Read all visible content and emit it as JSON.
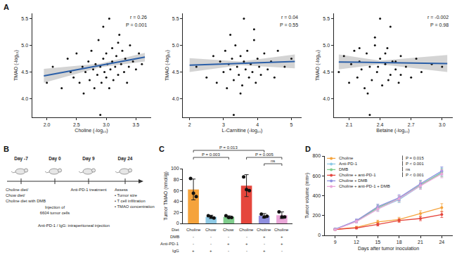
{
  "panel_labels": [
    "A",
    "B",
    "C",
    "D"
  ],
  "chart_data": [
    {
      "type": "scatter",
      "xlabel": "Choline (-log₁₀)",
      "ylabel": "TMAO (-log₁₀)",
      "annotations": [
        "r = 0.26",
        "P = 0.001"
      ],
      "xlim": [
        1.75,
        3.75
      ],
      "xticks": [
        {
          "value": 2,
          "label": "2.0"
        },
        2.5,
        {
          "value": 3,
          "label": "3.0"
        },
        3.5
      ],
      "ylim": [
        3.65,
        5.6
      ],
      "yticks": [
        {
          "value": 4,
          "label": "4.0"
        },
        4.5,
        {
          "value": 5,
          "label": "5.0"
        },
        5.5
      ],
      "grid": false,
      "color": "#111111",
      "x": [
        2.0,
        2.1,
        2.25,
        2.35,
        2.4,
        2.45,
        2.5,
        2.55,
        2.6,
        2.62,
        2.65,
        2.7,
        2.72,
        2.75,
        2.78,
        2.8,
        2.82,
        2.85,
        2.87,
        2.9,
        2.92,
        2.95,
        2.97,
        3.0,
        3.0,
        3.02,
        3.05,
        3.07,
        3.1,
        3.1,
        3.12,
        3.15,
        3.17,
        3.2,
        3.22,
        3.25,
        3.27,
        3.3,
        3.32,
        3.35,
        3.38,
        3.4,
        3.45,
        3.5,
        3.55,
        3.6,
        2.9,
        3.05,
        2.95,
        3.2
      ],
      "y": [
        4.3,
        4.6,
        4.2,
        4.75,
        4.5,
        4.4,
        4.85,
        4.3,
        4.6,
        4.1,
        4.5,
        4.7,
        4.35,
        4.9,
        4.55,
        4.2,
        4.65,
        4.45,
        5.1,
        4.6,
        4.3,
        4.75,
        4.5,
        4.85,
        4.4,
        4.65,
        4.2,
        4.55,
        4.95,
        4.7,
        4.35,
        4.6,
        4.8,
        4.45,
        5.2,
        4.65,
        4.9,
        4.5,
        4.75,
        4.3,
        4.6,
        5.0,
        4.7,
        4.55,
        4.85,
        4.65,
        3.7,
        5.5,
        5.35,
        5.05
      ],
      "fit": {
        "color": "#2b5fa8",
        "x": [
          1.95,
          2.9,
          3.65
        ],
        "y": [
          4.43,
          4.625,
          4.78
        ]
      },
      "band": {
        "x": [
          1.95,
          2.9,
          3.65
        ],
        "lower": [
          4.3,
          4.59,
          4.7
        ],
        "upper": [
          4.56,
          4.66,
          4.86
        ]
      }
    },
    {
      "type": "scatter",
      "xlabel": "L-Carnitine (-log₁₀)",
      "ylabel": "TMAO (-log₁₀)",
      "annotations": [
        "r = 0.04",
        "P = 0.55"
      ],
      "xlim": [
        1.8,
        5.3
      ],
      "xticks": [
        2,
        3,
        4,
        5
      ],
      "ylim": [
        3.65,
        5.6
      ],
      "yticks": [
        {
          "value": 4,
          "label": "4.0"
        },
        4.5,
        {
          "value": 5,
          "label": "5.0"
        },
        5.5
      ],
      "grid": false,
      "color": "#111111",
      "x": [
        2.2,
        2.5,
        2.7,
        2.8,
        2.9,
        3.0,
        3.05,
        3.1,
        3.15,
        3.2,
        3.25,
        3.3,
        3.35,
        3.4,
        3.45,
        3.5,
        3.55,
        3.6,
        3.65,
        3.7,
        3.75,
        3.8,
        3.85,
        3.9,
        3.95,
        4.0,
        4.05,
        4.1,
        4.2,
        4.3,
        4.4,
        4.5,
        4.6,
        4.8,
        5.0,
        3.3,
        3.6,
        3.9,
        3.5,
        3.2
      ],
      "y": [
        4.6,
        4.4,
        4.8,
        4.3,
        4.7,
        4.5,
        4.9,
        4.2,
        4.65,
        4.55,
        4.75,
        4.35,
        5.0,
        4.6,
        4.45,
        4.8,
        4.25,
        4.7,
        4.55,
        4.9,
        4.4,
        4.65,
        4.5,
        5.1,
        4.3,
        4.75,
        4.6,
        4.45,
        4.85,
        4.55,
        4.7,
        4.4,
        4.9,
        4.6,
        4.75,
        3.7,
        5.5,
        5.3,
        4.1,
        5.2
      ],
      "fit": {
        "color": "#2b5fa8",
        "x": [
          2.0,
          3.5,
          5.1
        ],
        "y": [
          4.63,
          4.665,
          4.7
        ]
      },
      "band": {
        "x": [
          2.0,
          3.5,
          5.1
        ],
        "lower": [
          4.5,
          4.63,
          4.57
        ],
        "upper": [
          4.76,
          4.7,
          4.83
        ]
      }
    },
    {
      "type": "scatter",
      "xlabel": "Betaine (-log₁₀)",
      "ylabel": "TMAO (-log₁₀)",
      "annotations": [
        "r = -0.002",
        "P = 0.98"
      ],
      "xlim": [
        1.95,
        3.1
      ],
      "xticks": [
        2.1,
        2.4,
        2.7,
        {
          "value": 3,
          "label": "3.0"
        }
      ],
      "ylim": [
        3.65,
        5.6
      ],
      "yticks": [
        {
          "value": 4,
          "label": "4.0"
        },
        4.5,
        {
          "value": 5,
          "label": "5.0"
        },
        5.5
      ],
      "grid": false,
      "color": "#111111",
      "x": [
        2.0,
        2.05,
        2.1,
        2.12,
        2.15,
        2.18,
        2.2,
        2.22,
        2.25,
        2.27,
        2.3,
        2.32,
        2.35,
        2.37,
        2.4,
        2.42,
        2.45,
        2.47,
        2.5,
        2.52,
        2.55,
        2.58,
        2.6,
        2.65,
        2.7,
        2.75,
        2.8,
        2.9,
        3.0,
        2.3,
        2.4,
        2.5,
        2.35,
        2.28,
        2.45,
        2.6,
        2.2,
        2.38,
        2.48,
        2.55
      ],
      "y": [
        4.5,
        4.8,
        4.3,
        4.65,
        4.9,
        4.4,
        4.7,
        4.55,
        4.2,
        4.85,
        4.6,
        4.35,
        5.0,
        4.5,
        4.75,
        4.25,
        4.65,
        4.95,
        4.45,
        4.7,
        4.55,
        4.3,
        4.8,
        4.6,
        4.4,
        4.75,
        4.5,
        4.65,
        4.6,
        3.7,
        5.5,
        5.35,
        5.15,
        4.1,
        4.85,
        4.45,
        4.95,
        4.6,
        4.35,
        4.7
      ],
      "fit": {
        "color": "#2b5fa8",
        "x": [
          2.0,
          2.4,
          3.05
        ],
        "y": [
          4.69,
          4.68,
          4.66
        ]
      },
      "band": {
        "x": [
          2.0,
          2.4,
          3.05
        ],
        "lower": [
          4.55,
          4.645,
          4.5
        ],
        "upper": [
          4.83,
          4.715,
          4.82
        ]
      }
    },
    {
      "type": "bar",
      "ylabel": "Tumor TMAO (nmol/g)",
      "ylim": [
        0,
        100
      ],
      "yticks": [
        0,
        20,
        40,
        60,
        80,
        100
      ],
      "grid": false,
      "tick_labels": "y",
      "values": [
        62,
        12,
        12,
        69,
        14,
        15
      ],
      "error": [
        19,
        3,
        2,
        20,
        4,
        6
      ],
      "points": [
        [
          82,
          55,
          49
        ],
        [
          14,
          12,
          10
        ],
        [
          14,
          11,
          11
        ],
        [
          85,
          62,
          60
        ],
        [
          17,
          12,
          13
        ],
        [
          21,
          12,
          12
        ]
      ],
      "colors": [
        "#f5a33c",
        "#8ecae6",
        "#7fcd8c",
        "#e5463d",
        "#8f8fe0",
        "#eaa6d8"
      ],
      "table": {
        "rows": [
          {
            "label": "Diet",
            "cells": [
              "Choline",
              "Chow",
              "Chow",
              "Choline",
              "Choline",
              "Choline"
            ]
          },
          {
            "label": "DMB",
            "cells": [
              "-",
              "-",
              "-",
              "-",
              "+",
              "+"
            ]
          },
          {
            "label": "Anti-PD-1",
            "cells": [
              "-",
              "-",
              "+",
              "+",
              "-",
              "+"
            ]
          },
          {
            "label": "IgG",
            "cells": [
              "+",
              "+",
              "-",
              "-",
              "+",
              "-"
            ]
          }
        ]
      },
      "comparisons": [
        {
          "groups": [
            0,
            4
          ],
          "label": "P = 0.013"
        },
        {
          "groups": [
            0,
            2
          ],
          "label": "P = 0.003"
        },
        {
          "groups": [
            3,
            5
          ],
          "label": "P = 0.005"
        },
        {
          "groups": [
            4,
            5
          ],
          "label": "ns"
        }
      ]
    },
    {
      "type": "line",
      "xlabel": "Days after tumor inoculation",
      "ylabel": "Tumor volume (mm³)",
      "xlim": [
        7.5,
        25.5
      ],
      "xticks": [
        9,
        12,
        15,
        18,
        21,
        24
      ],
      "ylim": [
        0,
        800
      ],
      "yticks": [
        0,
        200,
        400,
        600,
        800
      ],
      "grid": false,
      "legend": "upper left",
      "marker": "circle",
      "line_style": "solid",
      "x": [
        9,
        12,
        15,
        18,
        21,
        24
      ],
      "series": [
        {
          "name": "Choline",
          "color": "#f5a33c",
          "values": [
            60,
            80,
            135,
            160,
            220,
            280
          ],
          "error": [
            8,
            12,
            18,
            22,
            28,
            40
          ]
        },
        {
          "name": "Anti-PD-1",
          "color": "#8ecae6",
          "values": [
            65,
            140,
            270,
            360,
            500,
            640
          ],
          "error": [
            8,
            15,
            25,
            30,
            35,
            40
          ]
        },
        {
          "name": "DMB",
          "color": "#7fcd8c",
          "values": [
            60,
            145,
            280,
            370,
            510,
            630
          ],
          "error": [
            8,
            15,
            25,
            30,
            35,
            40
          ]
        },
        {
          "name": "Choline + anti-PD-1",
          "color": "#e5463d",
          "values": [
            60,
            75,
            110,
            150,
            170,
            210
          ],
          "error": [
            8,
            10,
            15,
            18,
            22,
            30
          ]
        },
        {
          "name": "Choline + DMB",
          "color": "#8f8fe0",
          "values": [
            62,
            150,
            290,
            380,
            520,
            650
          ],
          "error": [
            8,
            15,
            25,
            30,
            35,
            40
          ]
        },
        {
          "name": "Choline + anti-PD-1 + DMB",
          "color": "#eaa6d8",
          "values": [
            58,
            140,
            265,
            370,
            500,
            620
          ],
          "error": [
            8,
            15,
            25,
            30,
            35,
            40
          ]
        }
      ],
      "annotations": [
        "P = 0.015",
        "P < 0.001",
        "ns",
        "P < 0.001"
      ]
    }
  ],
  "diagram": {
    "stages": [
      {
        "day": "Day -7",
        "lines": [
          "Choline diet/",
          "Chow diet/",
          "Choline diet with DMB"
        ]
      },
      {
        "day": "Day 0",
        "lines": [
          "Injection of",
          "6604 tumor cells"
        ]
      },
      {
        "day": "Day 9",
        "lines": [
          "Anti-PD-1 treatment"
        ]
      },
      {
        "day": "Day 24",
        "lines": [
          "Assess",
          "• Tumor size",
          "• T cell infiltration",
          "• TMAO concentration"
        ]
      }
    ],
    "note": "Anti-PD-1 / IgG: intraperitoneal injection"
  }
}
